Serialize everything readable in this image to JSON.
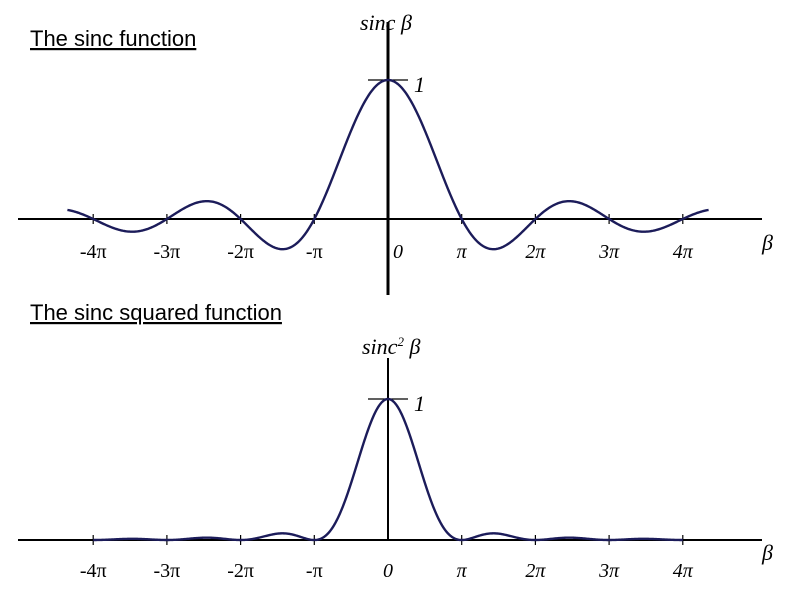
{
  "chart_data": [
    {
      "type": "line",
      "title": "The sinc function",
      "ylabel": "sinc β",
      "xlabel": "β",
      "y_tick_label": "1",
      "function": "sin(β)/β",
      "x_ticks": [
        -4,
        -3,
        -2,
        -1,
        0,
        1,
        2,
        3,
        4
      ],
      "x_tick_unit": "π",
      "x_tick_labels": [
        "-4π",
        "-3π",
        "-2π",
        "-π",
        "0",
        "π",
        "2π",
        "3π",
        "4π"
      ],
      "xlim": [
        -4.35,
        4.35
      ],
      "ylim": [
        -0.217,
        1
      ],
      "series": [
        {
          "color": "#1c1c5a",
          "x": [
            -4.35,
            -4,
            -3.5,
            -3,
            -2.5,
            -2,
            -1.5,
            -1,
            -0.5,
            0,
            0.5,
            1,
            1.5,
            2,
            2.5,
            3,
            3.5,
            4,
            4.35
          ],
          "y": [
            0.07,
            0,
            -0.091,
            0,
            0.127,
            0,
            -0.212,
            0,
            0.637,
            1,
            0.637,
            0,
            -0.212,
            0,
            0.127,
            0,
            -0.091,
            0,
            0.07
          ]
        }
      ]
    },
    {
      "type": "line",
      "title": "The sinc squared function",
      "ylabel_base": "sinc",
      "ylabel_exponent": "2",
      "ylabel_var": " β",
      "xlabel": "β",
      "y_tick_label": "1",
      "function": "(sin(β)/β)^2",
      "x_ticks": [
        -4,
        -3,
        -2,
        -1,
        0,
        1,
        2,
        3,
        4
      ],
      "x_tick_unit": "π",
      "x_tick_labels": [
        "-4π",
        "-3π",
        "-2π",
        "-π",
        "0",
        "π",
        "2π",
        "3π",
        "4π"
      ],
      "xlim": [
        -4,
        4
      ],
      "ylim": [
        0,
        1
      ],
      "series": [
        {
          "color": "#1c1c5a",
          "x": [
            -4,
            -3.5,
            -3,
            -2.5,
            -2,
            -1.5,
            -1,
            -0.5,
            0,
            0.5,
            1,
            1.5,
            2,
            2.5,
            3,
            3.5,
            4
          ],
          "y": [
            0,
            0.008,
            0,
            0.016,
            0,
            0.045,
            0,
            0.405,
            1,
            0.405,
            0,
            0.045,
            0,
            0.016,
            0,
            0.008,
            0
          ]
        }
      ]
    }
  ]
}
